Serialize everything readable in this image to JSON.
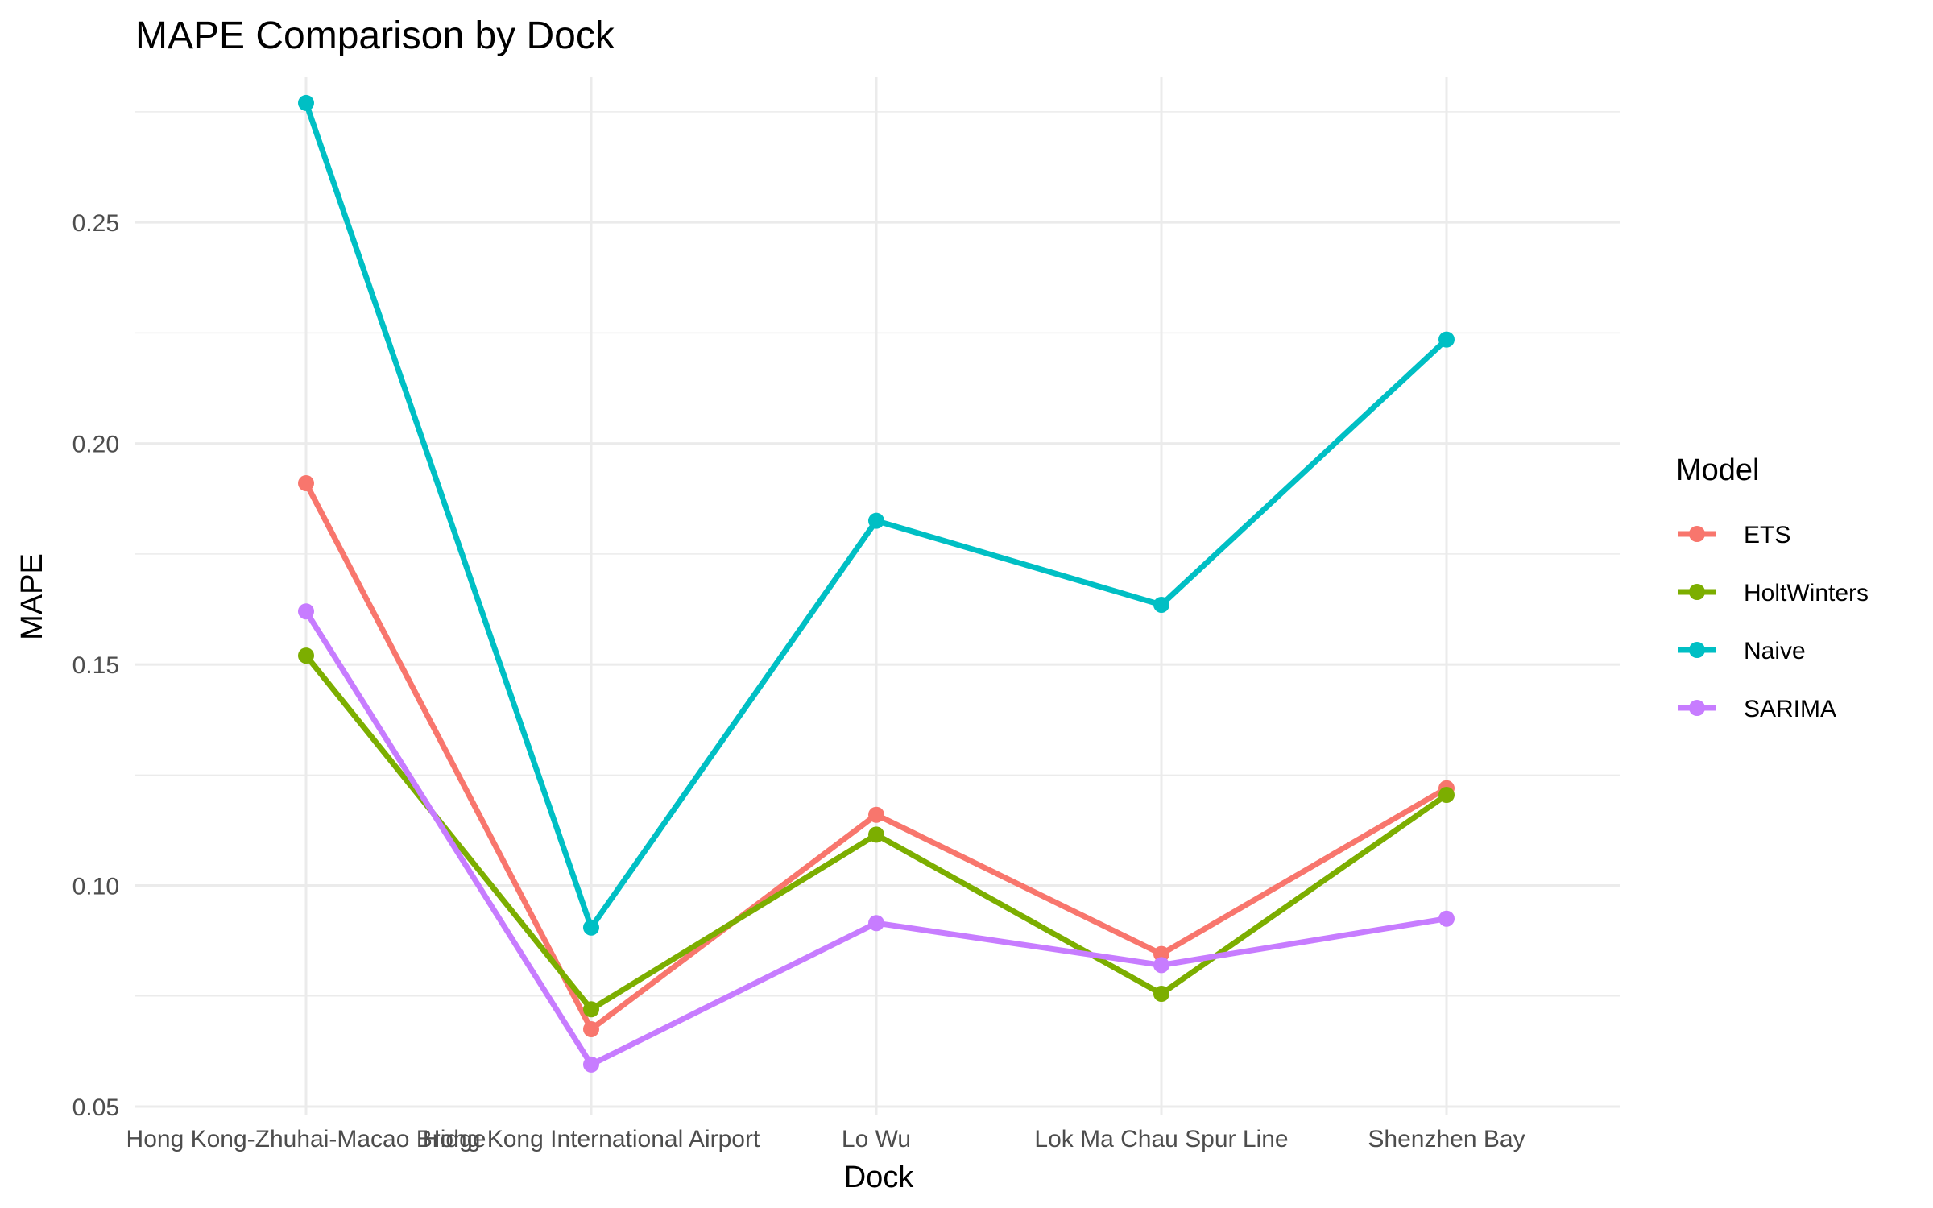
{
  "chart_data": {
    "type": "line",
    "title": "MAPE Comparison by Dock",
    "xlabel": "Dock",
    "ylabel": "MAPE",
    "categories": [
      "Hong Kong-Zhuhai-Macao Bridge",
      "Hong Kong International Airport",
      "Lo Wu",
      "Lok Ma Chau Spur Line",
      "Shenzhen Bay"
    ],
    "ylim": [
      0.048,
      0.283
    ],
    "yticks": [
      0.05,
      0.1,
      0.15,
      0.2,
      0.25
    ],
    "ytick_labels": [
      "0.05",
      "0.10",
      "0.15",
      "0.20",
      "0.25"
    ],
    "grid": true,
    "legend": {
      "title": "Model",
      "placement": "right"
    },
    "series": [
      {
        "name": "ETS",
        "color": "#F8766D",
        "values": [
          0.191,
          0.0675,
          0.116,
          0.0845,
          0.122
        ]
      },
      {
        "name": "HoltWinters",
        "color": "#7CAE00",
        "values": [
          0.152,
          0.072,
          0.1115,
          0.0755,
          0.1205
        ]
      },
      {
        "name": "Naive",
        "color": "#00BFC4",
        "values": [
          0.277,
          0.0905,
          0.1825,
          0.1635,
          0.2235
        ]
      },
      {
        "name": "SARIMA",
        "color": "#C77CFF",
        "values": [
          0.162,
          0.0595,
          0.0915,
          0.082,
          0.0925
        ]
      }
    ]
  }
}
